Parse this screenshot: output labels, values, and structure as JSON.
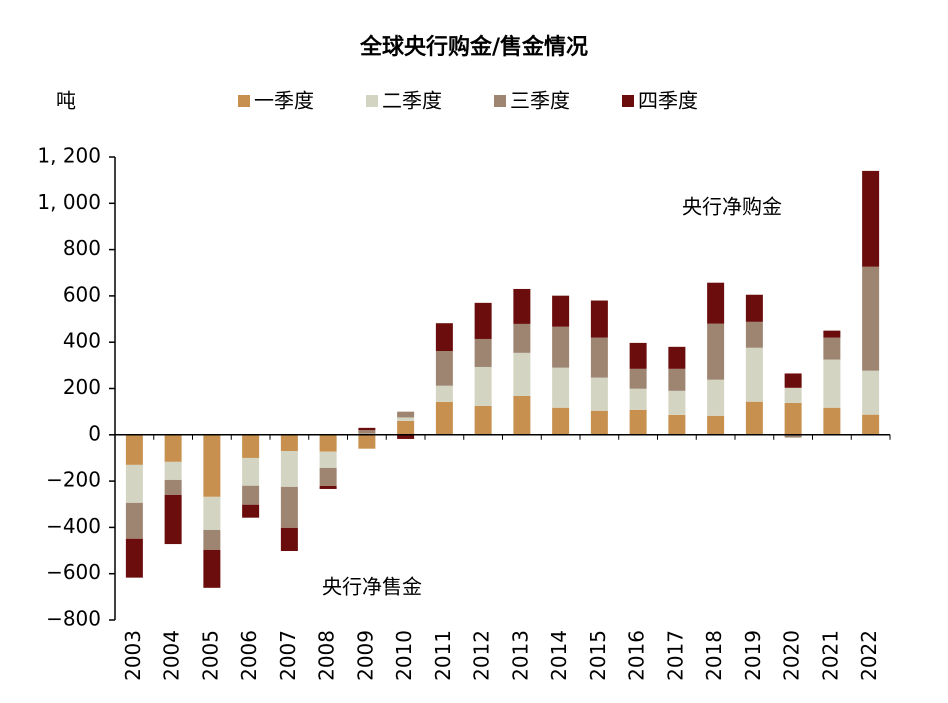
{
  "chart_data": {
    "type": "bar",
    "stacked": true,
    "title": "全球央行购金/售金情况",
    "y_label": "吨",
    "annotations": [
      "央行净购金",
      "央行净售金"
    ],
    "categories": [
      "2003",
      "2004",
      "2005",
      "2006",
      "2007",
      "2008",
      "2009",
      "2010",
      "2011",
      "2012",
      "2013",
      "2014",
      "2015",
      "2016",
      "2017",
      "2018",
      "2019",
      "2020",
      "2021",
      "2022"
    ],
    "series": [
      {
        "name": "一季度",
        "color": "#c8904f",
        "values": [
          -130,
          -117,
          -268,
          -100,
          -70,
          -73,
          -60,
          60,
          142,
          125,
          168,
          117,
          104,
          108,
          86,
          82,
          143,
          138,
          117,
          87
        ]
      },
      {
        "name": "二季度",
        "color": "#d4d4c2",
        "values": [
          -164,
          -78,
          -143,
          -120,
          -155,
          -70,
          5,
          15,
          70,
          168,
          186,
          173,
          143,
          91,
          104,
          156,
          233,
          65,
          208,
          190
        ]
      },
      {
        "name": "三季度",
        "color": "#9e8572",
        "values": [
          -155,
          -65,
          -86,
          -82,
          -177,
          -78,
          15,
          25,
          150,
          121,
          125,
          177,
          173,
          86,
          95,
          242,
          112,
          -12,
          95,
          449
        ]
      },
      {
        "name": "四季度",
        "color": "#6b0d0d",
        "values": [
          -168,
          -212,
          -164,
          -56,
          -100,
          -13,
          10,
          -18,
          120,
          156,
          151,
          134,
          160,
          112,
          95,
          177,
          117,
          62,
          30,
          414
        ]
      }
    ],
    "ylim": [
      -800,
      1200
    ],
    "yticks": [
      {
        "value": -800,
        "label": "−800"
      },
      {
        "value": -600,
        "label": "−600"
      },
      {
        "value": -400,
        "label": "−400"
      },
      {
        "value": -200,
        "label": "−200"
      },
      0,
      200,
      400,
      600,
      800,
      {
        "value": 1000,
        "label": "1, 000"
      },
      {
        "value": 1200,
        "label": "1, 200"
      }
    ]
  }
}
